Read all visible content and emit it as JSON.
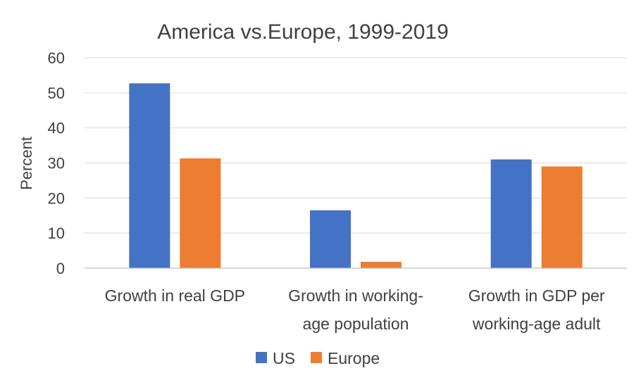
{
  "chart_data": {
    "type": "bar",
    "title": "America vs.Europe, 1999-2019",
    "ylabel": "Percent",
    "xlabel": "",
    "ylim": [
      0,
      60
    ],
    "yticks": [
      0,
      10,
      20,
      30,
      40,
      50,
      60
    ],
    "grid": true,
    "legend_position": "bottom",
    "categories": [
      [
        "Growth in real GDP"
      ],
      [
        "Growth in working-",
        "age population"
      ],
      [
        "Growth in GDP per",
        "working-age adult"
      ]
    ],
    "series": [
      {
        "name": "US",
        "color": "#4472c4",
        "values": [
          52.7,
          16.5,
          31.0
        ]
      },
      {
        "name": "Europe",
        "color": "#ed7d31",
        "values": [
          31.3,
          1.8,
          29.0
        ]
      }
    ]
  }
}
